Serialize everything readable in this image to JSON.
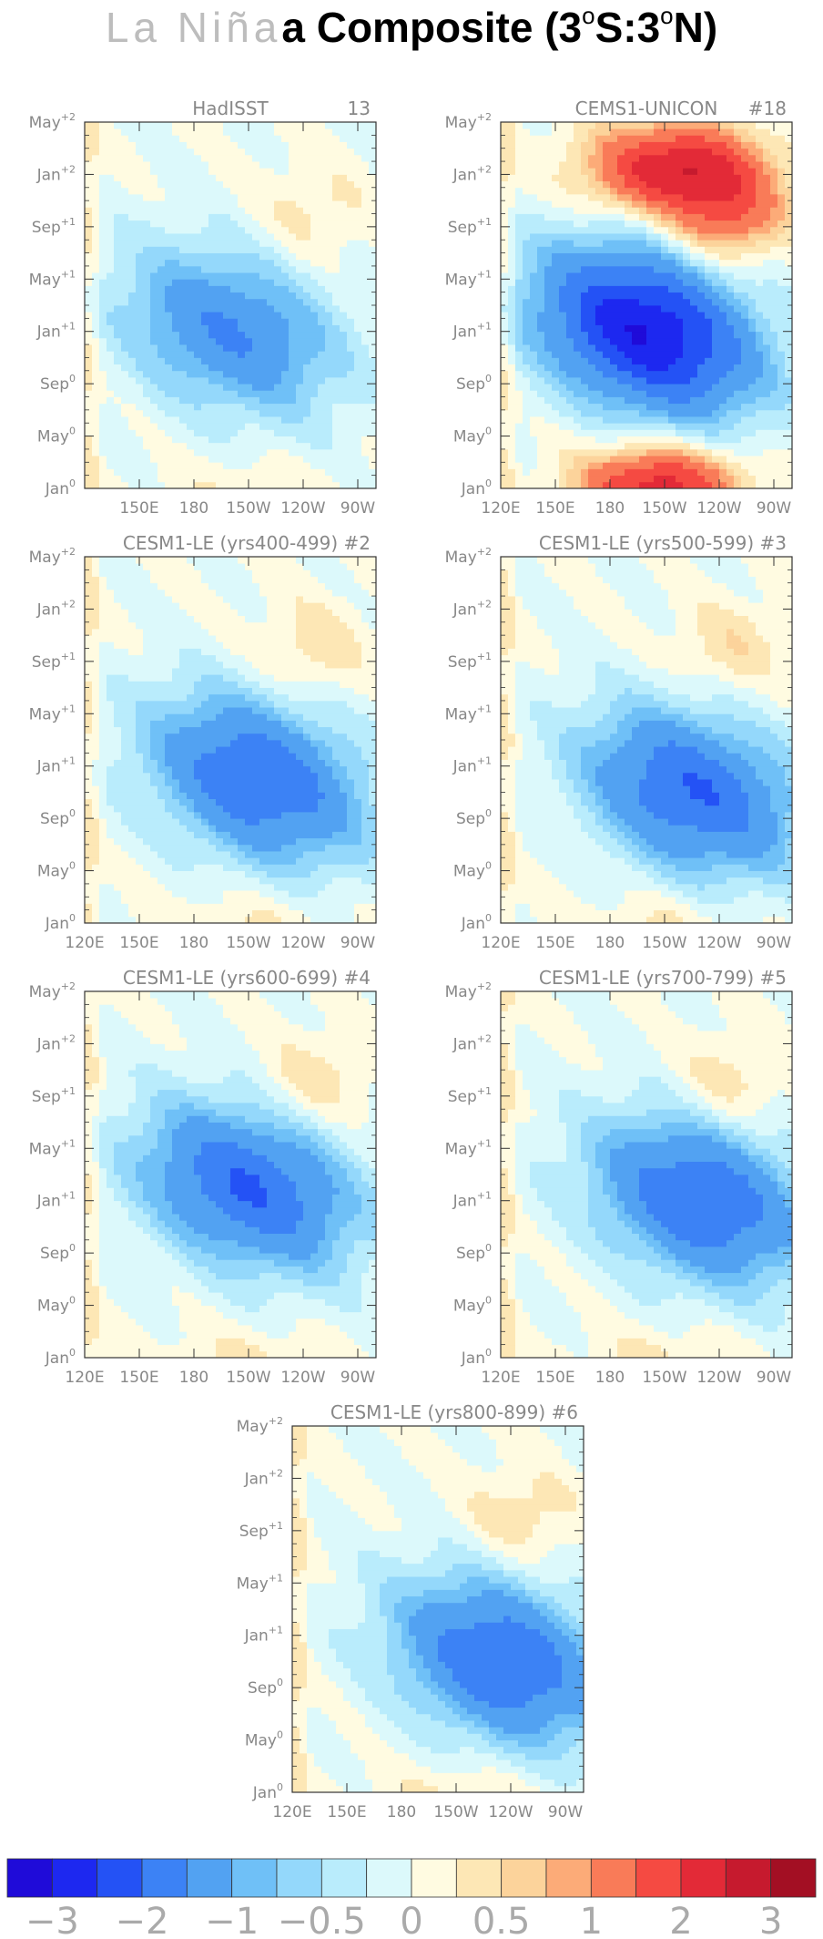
{
  "title": {
    "light": "La Niña",
    "bold": "a Composite (3",
    "deg1": "o",
    "mid": "S:3",
    "deg2": "o",
    "end": "N)"
  },
  "chart_data": {
    "type": "heatmap",
    "title": "La Niña Composite (3°S:3°N)",
    "x_ticks": [
      {
        "label": "120E",
        "lon": 120
      },
      {
        "label": "150E",
        "lon": 150
      },
      {
        "label": "180",
        "lon": 180
      },
      {
        "label": "150W",
        "lon": 210
      },
      {
        "label": "120W",
        "lon": 240
      },
      {
        "label": "90W",
        "lon": 270
      }
    ],
    "y_ticks": [
      {
        "base": "Jan",
        "sup": "0",
        "month": 0
      },
      {
        "base": "May",
        "sup": "0",
        "month": 4
      },
      {
        "base": "Sep",
        "sup": "0",
        "month": 8
      },
      {
        "base": "Jan",
        "sup": "+1",
        "month": 12
      },
      {
        "base": "May",
        "sup": "+1",
        "month": 16
      },
      {
        "base": "Sep",
        "sup": "+1",
        "month": 20
      },
      {
        "base": "Jan",
        "sup": "+2",
        "month": 24
      },
      {
        "base": "May",
        "sup": "+2",
        "month": 28
      }
    ],
    "xlim": [
      120,
      280
    ],
    "ylim": [
      0,
      28
    ],
    "colorbar": {
      "colors": [
        "#1f0bd9",
        "#1d28f0",
        "#2452f5",
        "#3c82f5",
        "#52a2f2",
        "#6fc0f7",
        "#94d8fb",
        "#b9ecfc",
        "#dcf9fb",
        "#fffbe1",
        "#fde7b5",
        "#fcd39b",
        "#fcab78",
        "#f97b58",
        "#f54a42",
        "#e32a37",
        "#c61a2e",
        "#a30f23"
      ],
      "levels": [
        -3,
        -2.5,
        -2,
        -1.5,
        -1,
        -0.75,
        -0.5,
        -0.25,
        0,
        0.25,
        0.5,
        0.75,
        1,
        1.5,
        2,
        2.5,
        3
      ],
      "labels": [
        {
          "text": "−3",
          "value": -3
        },
        {
          "text": "−2",
          "value": -2
        },
        {
          "text": "−1",
          "value": -1
        },
        {
          "text": "−0.5",
          "value": -0.5
        },
        {
          "text": "0",
          "value": 0
        },
        {
          "text": "0.5",
          "value": 0.5
        },
        {
          "text": "1",
          "value": 1
        },
        {
          "text": "2",
          "value": 2
        },
        {
          "text": "3",
          "value": 3
        }
      ]
    },
    "panels": [
      {
        "name": "HadISST",
        "number": "13",
        "min_anomaly": -1.5,
        "max_anomaly": 0.4,
        "min_lon": 200,
        "min_month": 12
      },
      {
        "name": "CEMS1-UNICON",
        "number": "#18",
        "min_anomaly": -3.0,
        "max_anomaly": 1.5,
        "min_lon": 200,
        "min_month": 12
      },
      {
        "name": "CESM1-LE (yrs400-499)",
        "number": "#2",
        "min_anomaly": -2.0,
        "max_anomaly": 0.5,
        "min_lon": 215,
        "min_month": 11
      },
      {
        "name": "CESM1-LE (yrs500-599)",
        "number": "#3",
        "min_anomaly": -2.0,
        "max_anomaly": 0.5,
        "min_lon": 225,
        "min_month": 10
      },
      {
        "name": "CESM1-LE (yrs600-699)",
        "number": "#4",
        "min_anomaly": -2.0,
        "max_anomaly": 0.5,
        "min_lon": 210,
        "min_month": 13
      },
      {
        "name": "CESM1-LE (yrs700-799)",
        "number": "#5",
        "min_anomaly": -2.0,
        "max_anomaly": 0.5,
        "min_lon": 230,
        "min_month": 12
      },
      {
        "name": "CESM1-LE (yrs800-899)",
        "number": "#6",
        "min_anomaly": -2.0,
        "max_anomaly": 0.5,
        "min_lon": 235,
        "min_month": 10
      }
    ]
  }
}
